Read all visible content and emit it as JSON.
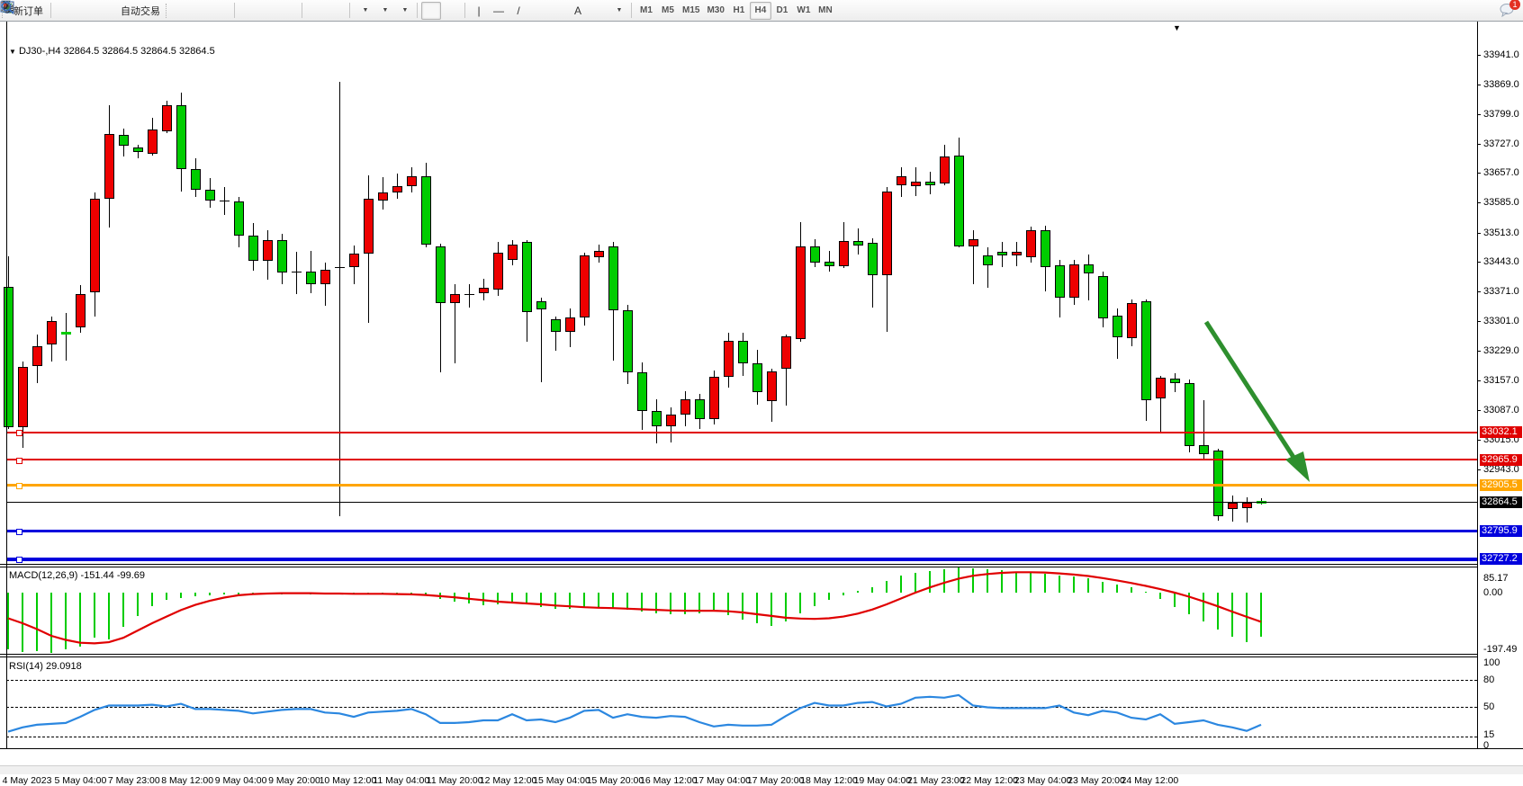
{
  "toolbar": {
    "new_order_label": "新订单",
    "auto_trading_label": "自动交易",
    "icons": [
      "new-order-icon",
      "market-watch-icon",
      "chart-window-icon",
      "signal-icon",
      "auto-trading-icon",
      "bar-chart-icon",
      "candlestick-chart-icon",
      "line-chart-icon",
      "zoom-in-icon",
      "zoom-out-icon",
      "tile-windows-icon",
      "chart-shift-icon",
      "auto-scroll-icon",
      "indicators-icon",
      "periods-icon",
      "templates-icon",
      "cursor-icon",
      "crosshair-icon",
      "vertical-line-icon",
      "horizontal-line-icon",
      "trendline-icon",
      "equidistant-channel-icon",
      "fibonacci-icon",
      "text-icon",
      "text-label-icon",
      "arrows-icon",
      "search-icon",
      "chat-icon"
    ],
    "chat_badge": "1"
  },
  "timeframes": {
    "items": [
      "M1",
      "M5",
      "M15",
      "M30",
      "H1",
      "H4",
      "D1",
      "W1",
      "MN"
    ],
    "active": "H4"
  },
  "chart": {
    "title": "DJ30-,H4  32864.5 32864.5 32864.5 32864.5",
    "symbol": "DJ30-",
    "period": "H4",
    "marker": "▼",
    "shift_marker": "▼",
    "current_price": "32864.5"
  },
  "price_axis": {
    "ticks": [
      "33941.0",
      "33869.0",
      "33799.0",
      "33727.0",
      "33657.0",
      "33585.0",
      "33513.0",
      "33443.0",
      "33371.0",
      "33301.0",
      "33229.0",
      "33157.0",
      "33087.0",
      "33015.0",
      "32943.0"
    ]
  },
  "lines": {
    "horizontal": [
      {
        "price": 33032.1,
        "label": "33032.1",
        "color": "#e00000",
        "width": 2
      },
      {
        "price": 32965.9,
        "label": "32965.9",
        "color": "#e00000",
        "width": 2
      },
      {
        "price": 32905.5,
        "label": "32905.5",
        "color": "#ffa500",
        "width": 3
      },
      {
        "price": 32795.9,
        "label": "32795.9",
        "color": "#0000dd",
        "width": 3
      },
      {
        "price": 32727.2,
        "label": "32727.2",
        "color": "#0000dd",
        "width": 4
      }
    ],
    "current": {
      "price": 32864.5,
      "label": "32864.5",
      "color": "#000000",
      "width": 1
    }
  },
  "chart_data": {
    "type": "candlestick",
    "symbol": "DJ30-",
    "timeframe": "H4",
    "up_color": "#ee0000",
    "down_color": "#00cc00",
    "note": "red = bullish, green = bearish (Chinese color convention)",
    "candles": [
      [
        33383,
        33457,
        33040,
        33045,
        "g"
      ],
      [
        33045,
        33202,
        32995,
        33191,
        "r"
      ],
      [
        33191,
        33267,
        33152,
        33239,
        "r"
      ],
      [
        33243,
        33311,
        33202,
        33300,
        "r"
      ],
      [
        33269,
        33319,
        33206,
        33272,
        "g"
      ],
      [
        33285,
        33387,
        33272,
        33366,
        "r"
      ],
      [
        33370,
        33610,
        33311,
        33594,
        "r"
      ],
      [
        33594,
        33819,
        33525,
        33751,
        "r"
      ],
      [
        33749,
        33764,
        33697,
        33723,
        "g"
      ],
      [
        33719,
        33725,
        33693,
        33708,
        "g"
      ],
      [
        33703,
        33790,
        33698,
        33762,
        "r"
      ],
      [
        33758,
        33830,
        33752,
        33819,
        "r"
      ],
      [
        33819,
        33851,
        33612,
        33666,
        "g"
      ],
      [
        33666,
        33692,
        33598,
        33616,
        "g"
      ],
      [
        33616,
        33645,
        33572,
        33590,
        "g"
      ],
      [
        33590,
        33622,
        33556,
        33589,
        "k"
      ],
      [
        33589,
        33600,
        33478,
        33506,
        "g"
      ],
      [
        33506,
        33536,
        33422,
        33446,
        "g"
      ],
      [
        33446,
        33520,
        33400,
        33496,
        "r"
      ],
      [
        33496,
        33510,
        33388,
        33418,
        "g"
      ],
      [
        33418,
        33466,
        33366,
        33420,
        "k"
      ],
      [
        33420,
        33470,
        33368,
        33390,
        "g"
      ],
      [
        33390,
        33442,
        33338,
        33424,
        "r"
      ],
      [
        33424,
        33875,
        32830,
        33430,
        "k"
      ],
      [
        33430,
        33482,
        33390,
        33462,
        "r"
      ],
      [
        33462,
        33651,
        33296,
        33594,
        "r"
      ],
      [
        33590,
        33647,
        33568,
        33610,
        "r"
      ],
      [
        33610,
        33655,
        33595,
        33626,
        "r"
      ],
      [
        33626,
        33671,
        33610,
        33649,
        "r"
      ],
      [
        33649,
        33682,
        33478,
        33485,
        "g"
      ],
      [
        33481,
        33486,
        33176,
        33344,
        "g"
      ],
      [
        33344,
        33388,
        33198,
        33366,
        "r"
      ],
      [
        33366,
        33390,
        33333,
        33365,
        "k"
      ],
      [
        33368,
        33402,
        33350,
        33381,
        "r"
      ],
      [
        33377,
        33490,
        33361,
        33464,
        "r"
      ],
      [
        33448,
        33496,
        33435,
        33485,
        "r"
      ],
      [
        33490,
        33495,
        33250,
        33322,
        "g"
      ],
      [
        33348,
        33356,
        33154,
        33328,
        "g"
      ],
      [
        33304,
        33312,
        33228,
        33274,
        "g"
      ],
      [
        33274,
        33330,
        33238,
        33308,
        "r"
      ],
      [
        33310,
        33465,
        33290,
        33459,
        "r"
      ],
      [
        33453,
        33485,
        33442,
        33470,
        "r"
      ],
      [
        33479,
        33490,
        33206,
        33326,
        "g"
      ],
      [
        33326,
        33340,
        33148,
        33176,
        "g"
      ],
      [
        33176,
        33200,
        33038,
        33084,
        "g"
      ],
      [
        33084,
        33112,
        33005,
        33048,
        "g"
      ],
      [
        33048,
        33092,
        33008,
        33076,
        "r"
      ],
      [
        33076,
        33132,
        33046,
        33112,
        "r"
      ],
      [
        33112,
        33126,
        33040,
        33064,
        "g"
      ],
      [
        33064,
        33182,
        33052,
        33166,
        "r"
      ],
      [
        33166,
        33272,
        33140,
        33252,
        "r"
      ],
      [
        33252,
        33272,
        33168,
        33198,
        "g"
      ],
      [
        33198,
        33230,
        33098,
        33130,
        "g"
      ],
      [
        33108,
        33185,
        33058,
        33180,
        "r"
      ],
      [
        33185,
        33268,
        33097,
        33263,
        "r"
      ],
      [
        33257,
        33538,
        33250,
        33481,
        "r"
      ],
      [
        33481,
        33498,
        33430,
        33442,
        "g"
      ],
      [
        33444,
        33470,
        33420,
        33433,
        "g"
      ],
      [
        33433,
        33538,
        33428,
        33494,
        "r"
      ],
      [
        33492,
        33524,
        33460,
        33483,
        "g"
      ],
      [
        33488,
        33500,
        33333,
        33411,
        "g"
      ],
      [
        33411,
        33622,
        33274,
        33612,
        "r"
      ],
      [
        33627,
        33670,
        33600,
        33649,
        "r"
      ],
      [
        33625,
        33671,
        33601,
        33636,
        "r"
      ],
      [
        33636,
        33660,
        33605,
        33627,
        "g"
      ],
      [
        33631,
        33725,
        33627,
        33697,
        "r"
      ],
      [
        33699,
        33741,
        33478,
        33481,
        "g"
      ],
      [
        33481,
        33520,
        33390,
        33498,
        "r"
      ],
      [
        33459,
        33478,
        33380,
        33435,
        "g"
      ],
      [
        33468,
        33490,
        33430,
        33459,
        "g"
      ],
      [
        33459,
        33490,
        33432,
        33468,
        "r"
      ],
      [
        33453,
        33528,
        33440,
        33520,
        "r"
      ],
      [
        33520,
        33530,
        33372,
        33431,
        "g"
      ],
      [
        33435,
        33448,
        33310,
        33357,
        "g"
      ],
      [
        33357,
        33448,
        33340,
        33436,
        "r"
      ],
      [
        33437,
        33460,
        33350,
        33414,
        "g"
      ],
      [
        33409,
        33420,
        33285,
        33307,
        "g"
      ],
      [
        33313,
        33330,
        33210,
        33261,
        "g"
      ],
      [
        33259,
        33352,
        33240,
        33344,
        "r"
      ],
      [
        33348,
        33352,
        33060,
        33110,
        "g"
      ],
      [
        33115,
        33168,
        33035,
        33163,
        "r"
      ],
      [
        33161,
        33174,
        33130,
        33150,
        "g"
      ],
      [
        33152,
        33160,
        32984,
        32999,
        "g"
      ],
      [
        33002,
        33110,
        32969,
        32980,
        "g"
      ],
      [
        32988,
        32994,
        32820,
        32831,
        "g"
      ],
      [
        32847,
        32880,
        32818,
        32862,
        "r"
      ],
      [
        32851,
        32876,
        32815,
        32864,
        "r"
      ],
      [
        32866,
        32874,
        32858,
        32863,
        "g"
      ]
    ]
  },
  "macd": {
    "label": "MACD(12,26,9) -151.44 -99.69",
    "main_value": -151.44,
    "signal_value": -99.69,
    "scale_ticks": [
      "85.17",
      "0.00",
      "-197.49"
    ],
    "hist_color": "#00cc00",
    "signal_color": "#e00000",
    "histogram": [
      -195,
      -205,
      -200,
      -207,
      -195,
      -185,
      -155,
      -160,
      -118,
      -80,
      -45,
      -25,
      -18,
      -12,
      -8,
      -6,
      -5,
      -4,
      -4,
      -5,
      -4,
      -5,
      -6,
      -5,
      -6,
      -4,
      -3,
      -3,
      -4,
      -10,
      -22,
      -32,
      -38,
      -42,
      -40,
      -36,
      -40,
      -48,
      -55,
      -57,
      -52,
      -48,
      -52,
      -58,
      -66,
      -72,
      -75,
      -73,
      -70,
      -65,
      -78,
      -92,
      -105,
      -113,
      -98,
      -70,
      -45,
      -25,
      -8,
      5,
      18,
      40,
      58,
      68,
      75,
      80,
      86,
      84,
      80,
      76,
      72,
      70,
      66,
      60,
      55,
      48,
      38,
      28,
      18,
      2,
      -22,
      -48,
      -75,
      -100,
      -125,
      -150,
      -170,
      -151
    ],
    "signal": [
      -88,
      -105,
      -125,
      -148,
      -162,
      -172,
      -174,
      -170,
      -155,
      -130,
      -105,
      -82,
      -60,
      -42,
      -28,
      -17,
      -9,
      -5,
      -3,
      -2,
      -2,
      -2,
      -3,
      -3,
      -4,
      -4,
      -4,
      -5,
      -6,
      -8,
      -12,
      -16,
      -21,
      -26,
      -31,
      -34,
      -37,
      -40,
      -44,
      -47,
      -50,
      -52,
      -53,
      -55,
      -57,
      -59,
      -61,
      -62,
      -62,
      -62,
      -64,
      -68,
      -74,
      -80,
      -86,
      -89,
      -90,
      -88,
      -82,
      -72,
      -58,
      -40,
      -20,
      0,
      18,
      34,
      48,
      58,
      64,
      68,
      70,
      70,
      69,
      66,
      62,
      57,
      50,
      42,
      33,
      23,
      12,
      0,
      -14,
      -30,
      -47,
      -65,
      -83,
      -100
    ]
  },
  "rsi": {
    "label": "RSI(14) 29.0918",
    "value": 29.0918,
    "scale_ticks": [
      "100",
      "80",
      "50",
      "15",
      "0"
    ],
    "levels": [
      80,
      50,
      15
    ],
    "line_color": "#2b87e0",
    "values": [
      21,
      26,
      29,
      30,
      31,
      38,
      46,
      51,
      51,
      51,
      52,
      50,
      53,
      47,
      47,
      46,
      45,
      42,
      44,
      46,
      47,
      47,
      43,
      42,
      38,
      43,
      44,
      45,
      47,
      41,
      31,
      31,
      32,
      34,
      34,
      41,
      34,
      35,
      32,
      37,
      45,
      46,
      37,
      41,
      38,
      37,
      39,
      38,
      32,
      27,
      29,
      28,
      28,
      29,
      39,
      48,
      54,
      51,
      51,
      54,
      55,
      50,
      53,
      60,
      61,
      60,
      63,
      51,
      49,
      48,
      48,
      48,
      48,
      51,
      43,
      40,
      45,
      43,
      37,
      35,
      41,
      30,
      32,
      34,
      29,
      26,
      22,
      29
    ]
  },
  "time_axis": {
    "labels": [
      "4 May 2023",
      "5 May 04:00",
      "7 May 23:00",
      "8 May 12:00",
      "9 May 04:00",
      "9 May 20:00",
      "10 May 12:00",
      "11 May 04:00",
      "11 May 20:00",
      "12 May 12:00",
      "15 May 04:00",
      "15 May 20:00",
      "16 May 12:00",
      "17 May 04:00",
      "17 May 20:00",
      "18 May 12:00",
      "19 May 04:00",
      "21 May 23:00",
      "22 May 12:00",
      "23 May 04:00",
      "23 May 20:00",
      "24 May 12:00"
    ]
  },
  "annotation_arrow": {
    "color": "#2e8f2e",
    "direction": "down-right"
  }
}
